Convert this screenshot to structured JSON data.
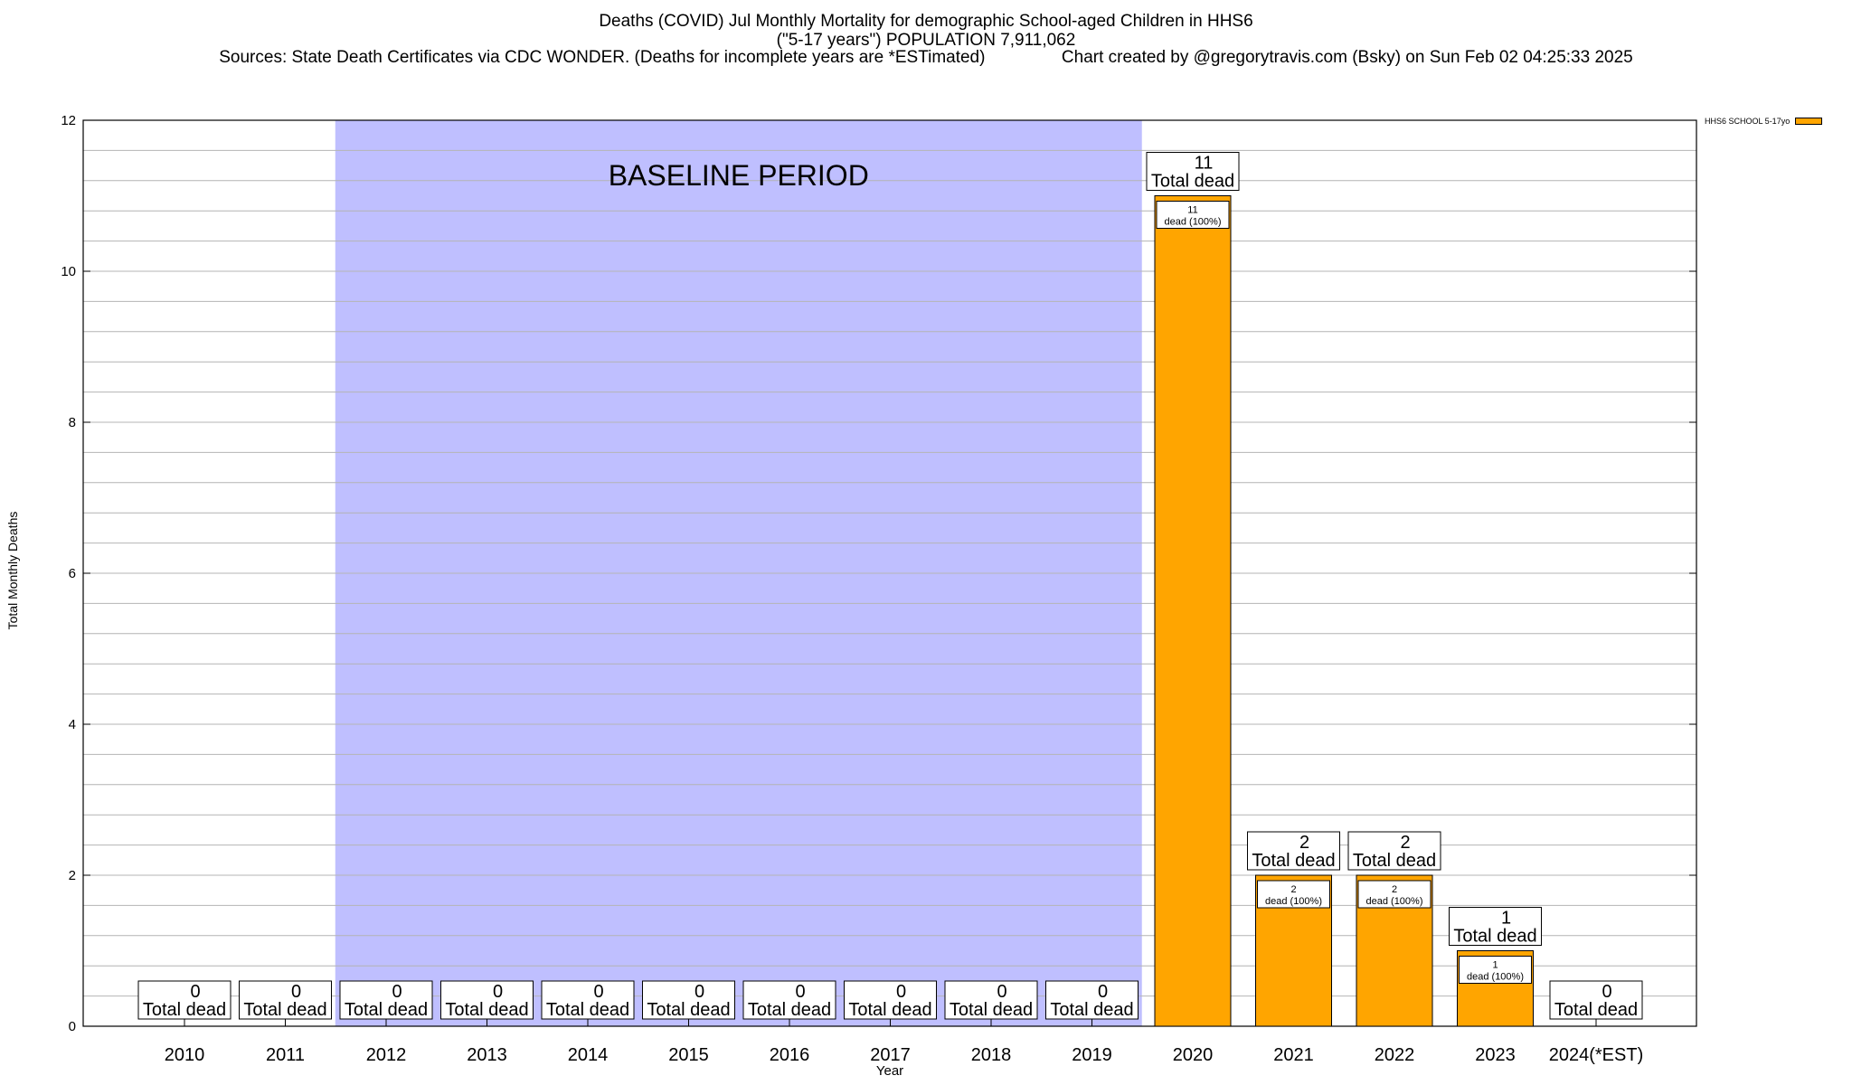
{
  "title_lines": [
    "Deaths (COVID) Jul Monthly Mortality for demographic School-aged Children in HHS6",
    "(\"5-17 years\") POPULATION 7,911,062",
    "Sources: State Death Certificates via CDC WONDER. (Deaths for incomplete years are *ESTimated)                Chart created by @gregorytravis.com (Bsky) on Sun Feb 02 04:25:33 2025"
  ],
  "chart_data": {
    "type": "bar",
    "title": "Deaths (COVID) Jul Monthly Mortality for demographic School-aged Children in HHS6",
    "xlabel": "Year",
    "ylabel": "Total Monthly Deaths",
    "ylim": [
      0,
      12
    ],
    "yticks": [
      0,
      2,
      4,
      6,
      8,
      10,
      12
    ],
    "grid": true,
    "legend_position": "top-right",
    "categories": [
      "2010",
      "2011",
      "2012",
      "2013",
      "2014",
      "2015",
      "2016",
      "2017",
      "2018",
      "2019",
      "2020",
      "2021",
      "2022",
      "2023",
      "2024(*EST)"
    ],
    "series": [
      {
        "name": "HHS6 SCHOOL 5-17yo",
        "color": "#ffa500",
        "values": [
          0,
          0,
          0,
          0,
          0,
          0,
          0,
          0,
          0,
          0,
          11,
          2,
          2,
          1,
          0
        ]
      }
    ],
    "total_label_suffix": "Total dead",
    "inner_label_suffix": "dead (100%)",
    "baseline": {
      "label": "BASELINE PERIOD",
      "start": "2012",
      "end": "2019",
      "color": "#bfbfff"
    }
  }
}
